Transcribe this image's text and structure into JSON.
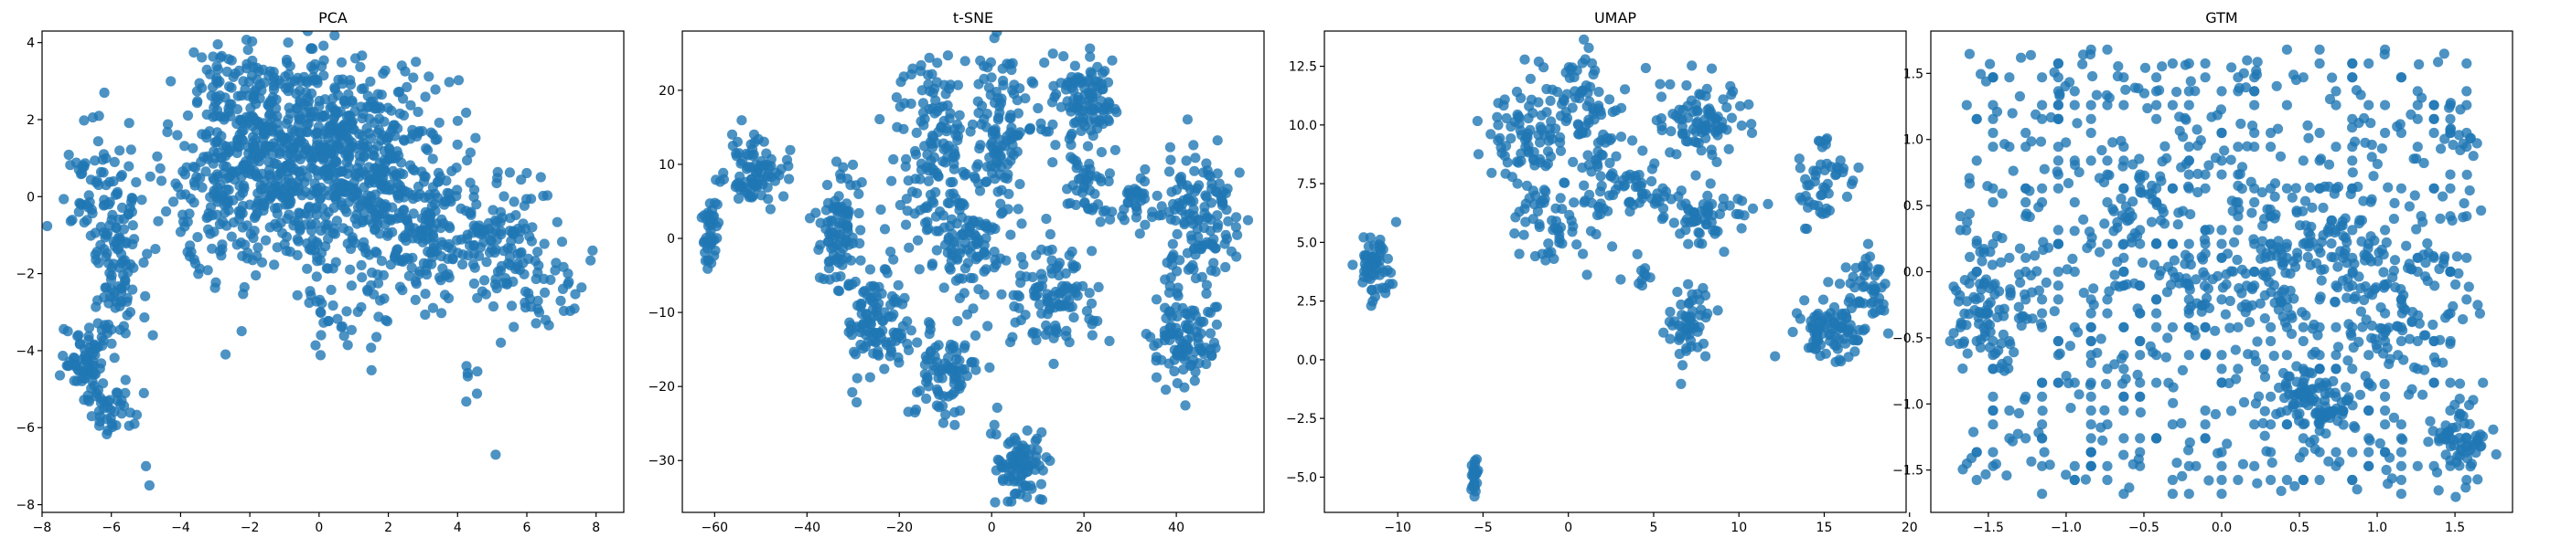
{
  "chart_data": [
    {
      "type": "scatter",
      "title": "PCA",
      "xlabel": "",
      "ylabel": "",
      "xlim": [
        -8.0,
        8.8
      ],
      "ylim": [
        -8.2,
        4.3
      ],
      "xticks": [
        -8,
        -6,
        -4,
        -2,
        0,
        2,
        4,
        6,
        8
      ],
      "yticks": [
        -8,
        -6,
        -4,
        -2,
        0,
        2,
        4
      ],
      "color": "#1f77b4",
      "grid": false,
      "clusters": [
        {
          "cx": -1.0,
          "cy": 1.6,
          "sx": 1.4,
          "sy": 1.1,
          "n": 350
        },
        {
          "cx": 1.2,
          "cy": 1.2,
          "sx": 1.3,
          "sy": 1.1,
          "n": 320
        },
        {
          "cx": -2.5,
          "cy": 0.2,
          "sx": 1.0,
          "sy": 1.1,
          "n": 160
        },
        {
          "cx": 0.5,
          "cy": -0.6,
          "sx": 1.5,
          "sy": 1.0,
          "n": 170
        },
        {
          "cx": 3.2,
          "cy": -1.2,
          "sx": 1.1,
          "sy": 0.9,
          "n": 150
        },
        {
          "cx": 5.0,
          "cy": -0.9,
          "sx": 0.9,
          "sy": 0.9,
          "n": 110
        },
        {
          "cx": 6.6,
          "cy": -2.2,
          "sx": 0.7,
          "sy": 0.6,
          "n": 35
        },
        {
          "cx": -5.8,
          "cy": -1.6,
          "sx": 0.4,
          "sy": 1.3,
          "n": 120
        },
        {
          "cx": -6.6,
          "cy": 0.3,
          "sx": 0.4,
          "sy": 0.9,
          "n": 40
        },
        {
          "cx": -6.7,
          "cy": -4.3,
          "sx": 0.35,
          "sy": 0.5,
          "n": 70
        },
        {
          "cx": -6.0,
          "cy": -5.6,
          "sx": 0.3,
          "sy": 0.35,
          "n": 35
        },
        {
          "cx": 1.0,
          "cy": -3.4,
          "sx": 0.8,
          "sy": 0.5,
          "n": 25
        },
        {
          "cx": 4.3,
          "cy": -5.1,
          "sx": 0.15,
          "sy": 0.3,
          "n": 6
        },
        {
          "cx": -2.8,
          "cy": 3.1,
          "sx": 0.6,
          "sy": 0.4,
          "n": 40
        }
      ],
      "points": [
        [
          -4.9,
          -7.5
        ],
        [
          -5.0,
          -7.0
        ],
        [
          5.1,
          -6.7
        ],
        [
          -6.2,
          2.7
        ],
        [
          -2.7,
          -4.1
        ],
        [
          -4.8,
          -3.6
        ],
        [
          7.9,
          -1.4
        ]
      ]
    },
    {
      "type": "scatter",
      "title": "t-SNE",
      "xlabel": "",
      "ylabel": "",
      "xlim": [
        -67,
        59
      ],
      "ylim": [
        -37,
        28
      ],
      "xticks": [
        -60,
        -40,
        -20,
        0,
        20,
        40
      ],
      "yticks": [
        -30,
        -20,
        -10,
        0,
        10,
        20
      ],
      "color": "#1f77b4",
      "grid": false,
      "clusters": [
        {
          "cx": -61,
          "cy": 1,
          "sx": 0.8,
          "sy": 2.2,
          "n": 45
        },
        {
          "cx": -51,
          "cy": 9,
          "sx": 3.0,
          "sy": 2.2,
          "n": 85
        },
        {
          "cx": -33,
          "cy": 1,
          "sx": 2.5,
          "sy": 4.5,
          "n": 95
        },
        {
          "cx": -25,
          "cy": -11,
          "sx": 3.5,
          "sy": 4.0,
          "n": 110
        },
        {
          "cx": -12,
          "cy": 12,
          "sx": 4.5,
          "sy": 7.0,
          "n": 150
        },
        {
          "cx": -5,
          "cy": -1,
          "sx": 3.5,
          "sy": 3.5,
          "n": 80
        },
        {
          "cx": -10,
          "cy": -18,
          "sx": 3.5,
          "sy": 3.5,
          "n": 90
        },
        {
          "cx": 2,
          "cy": 14,
          "sx": 3.5,
          "sy": 6.0,
          "n": 120
        },
        {
          "cx": 6,
          "cy": -31,
          "sx": 2.5,
          "sy": 2.5,
          "n": 85
        },
        {
          "cx": 13,
          "cy": -8,
          "sx": 5.0,
          "sy": 3.5,
          "n": 110
        },
        {
          "cx": 20,
          "cy": 18,
          "sx": 3.5,
          "sy": 3.5,
          "n": 110
        },
        {
          "cx": 20,
          "cy": 7,
          "sx": 3.0,
          "sy": 3.0,
          "n": 45
        },
        {
          "cx": 45,
          "cy": 3,
          "sx": 4.5,
          "sy": 4.5,
          "n": 130
        },
        {
          "cx": 42,
          "cy": -13,
          "sx": 3.5,
          "sy": 3.5,
          "n": 110
        },
        {
          "cx": 31,
          "cy": 5,
          "sx": 2.0,
          "sy": 2.0,
          "n": 30
        }
      ],
      "points": []
    },
    {
      "type": "scatter",
      "title": "UMAP",
      "xlabel": "",
      "ylabel": "",
      "xlim": [
        -14.3,
        19.8
      ],
      "ylim": [
        -6.5,
        14.0
      ],
      "xticks": [
        -10,
        -5,
        0,
        5,
        10,
        15,
        20
      ],
      "yticks": [
        -5.0,
        -2.5,
        0.0,
        2.5,
        5.0,
        7.5,
        10.0,
        12.5
      ],
      "color": "#1f77b4",
      "grid": false,
      "clusters": [
        {
          "cx": -11.3,
          "cy": 4.0,
          "sx": 0.5,
          "sy": 0.8,
          "n": 60
        },
        {
          "cx": -5.5,
          "cy": -4.9,
          "sx": 0.12,
          "sy": 0.35,
          "n": 25
        },
        {
          "cx": -2.5,
          "cy": 9.5,
          "sx": 1.3,
          "sy": 1.1,
          "n": 80
        },
        {
          "cx": 0.5,
          "cy": 11.5,
          "sx": 1.0,
          "sy": 0.8,
          "n": 50
        },
        {
          "cx": -0.8,
          "cy": 5.8,
          "sx": 1.2,
          "sy": 1.0,
          "n": 55
        },
        {
          "cx": 2.0,
          "cy": 8.0,
          "sx": 0.9,
          "sy": 1.5,
          "n": 60
        },
        {
          "cx": 4.5,
          "cy": 7.0,
          "sx": 1.0,
          "sy": 0.6,
          "n": 35
        },
        {
          "cx": 7.5,
          "cy": 10.0,
          "sx": 1.5,
          "sy": 0.9,
          "n": 90
        },
        {
          "cx": 8.0,
          "cy": 6.2,
          "sx": 1.4,
          "sy": 0.8,
          "n": 60
        },
        {
          "cx": 7.0,
          "cy": 1.6,
          "sx": 0.7,
          "sy": 0.8,
          "n": 55
        },
        {
          "cx": 15.0,
          "cy": 7.5,
          "sx": 0.7,
          "sy": 1.0,
          "n": 50
        },
        {
          "cx": 15.5,
          "cy": 1.3,
          "sx": 1.0,
          "sy": 0.6,
          "n": 85
        },
        {
          "cx": 17.5,
          "cy": 2.8,
          "sx": 0.7,
          "sy": 1.0,
          "n": 50
        },
        {
          "cx": 4.5,
          "cy": 3.5,
          "sx": 0.3,
          "sy": 0.3,
          "n": 8
        }
      ],
      "points": []
    },
    {
      "type": "scatter",
      "title": "GTM",
      "xlabel": "",
      "ylabel": "",
      "xlim": [
        -1.87,
        1.87
      ],
      "ylim": [
        -1.82,
        1.82
      ],
      "xticks": [
        -1.5,
        -1.0,
        -0.5,
        0.0,
        0.5,
        1.0,
        1.5
      ],
      "yticks": [
        -1.5,
        -1.0,
        -0.5,
        0.0,
        0.5,
        1.0,
        1.5
      ],
      "color": "#1f77b4",
      "grid": false,
      "uniform": {
        "xmin": -1.67,
        "xmax": 1.67,
        "ymin": -1.67,
        "ymax": 1.67,
        "n": 900,
        "grid_step": 0.105
      },
      "clusters": [
        {
          "cx": 0.6,
          "cy": -1.0,
          "sx": 0.12,
          "sy": 0.12,
          "n": 80
        },
        {
          "cx": 1.55,
          "cy": -1.3,
          "sx": 0.08,
          "sy": 0.15,
          "n": 50
        },
        {
          "cx": -1.5,
          "cy": -0.3,
          "sx": 0.12,
          "sy": 0.25,
          "n": 70
        },
        {
          "cx": 0.6,
          "cy": 0.3,
          "sx": 0.3,
          "sy": 0.2,
          "n": 90
        },
        {
          "cx": 1.1,
          "cy": -0.3,
          "sx": 0.2,
          "sy": 0.25,
          "n": 70
        },
        {
          "cx": 0.1,
          "cy": -0.1,
          "sx": 0.35,
          "sy": 0.15,
          "n": 80
        },
        {
          "cx": -0.6,
          "cy": 0.5,
          "sx": 0.2,
          "sy": 0.2,
          "n": 40
        }
      ],
      "points": []
    }
  ]
}
